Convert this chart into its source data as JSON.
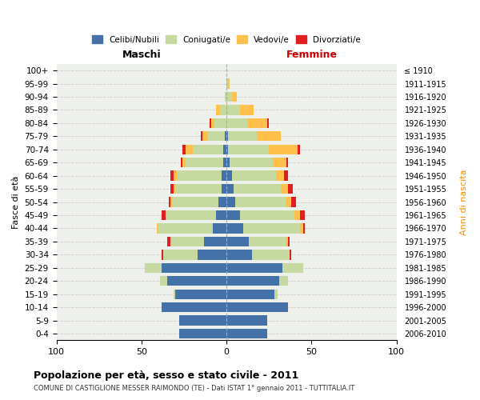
{
  "age_groups": [
    "0-4",
    "5-9",
    "10-14",
    "15-19",
    "20-24",
    "25-29",
    "30-34",
    "35-39",
    "40-44",
    "45-49",
    "50-54",
    "55-59",
    "60-64",
    "65-69",
    "70-74",
    "75-79",
    "80-84",
    "85-89",
    "90-94",
    "95-99",
    "100+"
  ],
  "birth_years": [
    "2006-2010",
    "2001-2005",
    "1996-2000",
    "1991-1995",
    "1986-1990",
    "1981-1985",
    "1976-1980",
    "1971-1975",
    "1966-1970",
    "1961-1965",
    "1956-1960",
    "1951-1955",
    "1946-1950",
    "1941-1945",
    "1936-1940",
    "1931-1935",
    "1926-1930",
    "1921-1925",
    "1916-1920",
    "1911-1915",
    "≤ 1910"
  ],
  "colors": {
    "celibi": "#4472a8",
    "coniugati": "#c5d9a0",
    "vedovi": "#ffc04c",
    "divorziati": "#e02020"
  },
  "males": {
    "celibi": [
      28,
      28,
      38,
      30,
      35,
      38,
      17,
      13,
      8,
      6,
      5,
      3,
      3,
      2,
      2,
      1,
      0,
      0,
      0,
      0,
      0
    ],
    "coniugati": [
      0,
      0,
      0,
      1,
      4,
      10,
      20,
      20,
      32,
      30,
      27,
      27,
      26,
      22,
      18,
      10,
      7,
      4,
      1,
      0,
      0
    ],
    "vedovi": [
      0,
      0,
      0,
      0,
      0,
      0,
      0,
      0,
      1,
      0,
      1,
      1,
      2,
      2,
      4,
      3,
      2,
      2,
      0,
      0,
      0
    ],
    "divorziati": [
      0,
      0,
      0,
      0,
      0,
      0,
      1,
      2,
      0,
      2,
      1,
      2,
      2,
      1,
      2,
      1,
      1,
      0,
      0,
      0,
      0
    ]
  },
  "females": {
    "celibi": [
      24,
      24,
      36,
      28,
      31,
      33,
      15,
      13,
      10,
      8,
      5,
      4,
      3,
      2,
      1,
      1,
      0,
      0,
      0,
      0,
      0
    ],
    "coniugati": [
      0,
      0,
      0,
      2,
      5,
      12,
      22,
      22,
      33,
      32,
      30,
      28,
      26,
      25,
      24,
      17,
      12,
      8,
      3,
      1,
      0
    ],
    "vedovi": [
      0,
      0,
      0,
      0,
      0,
      0,
      0,
      1,
      2,
      3,
      3,
      4,
      5,
      8,
      17,
      14,
      12,
      8,
      3,
      1,
      0
    ],
    "divorziati": [
      0,
      0,
      0,
      0,
      0,
      0,
      1,
      1,
      1,
      3,
      3,
      3,
      2,
      1,
      1,
      0,
      1,
      0,
      0,
      0,
      0
    ]
  },
  "xlim": 100,
  "title": "Popolazione per età, sesso e stato civile - 2011",
  "subtitle": "COMUNE DI CASTIGLIONE MESSER RAIMONDO (TE) - Dati ISTAT 1° gennaio 2011 - TUTTITALIA.IT",
  "xlabel_left": "Maschi",
  "xlabel_right": "Femmine",
  "ylabel_left": "Fasce di età",
  "ylabel_right": "Anni di nascita",
  "legend_labels": [
    "Celibi/Nubili",
    "Coniugati/e",
    "Vedovi/e",
    "Divorziati/e"
  ],
  "bg_color": "#eef0eb",
  "bar_height": 0.75
}
